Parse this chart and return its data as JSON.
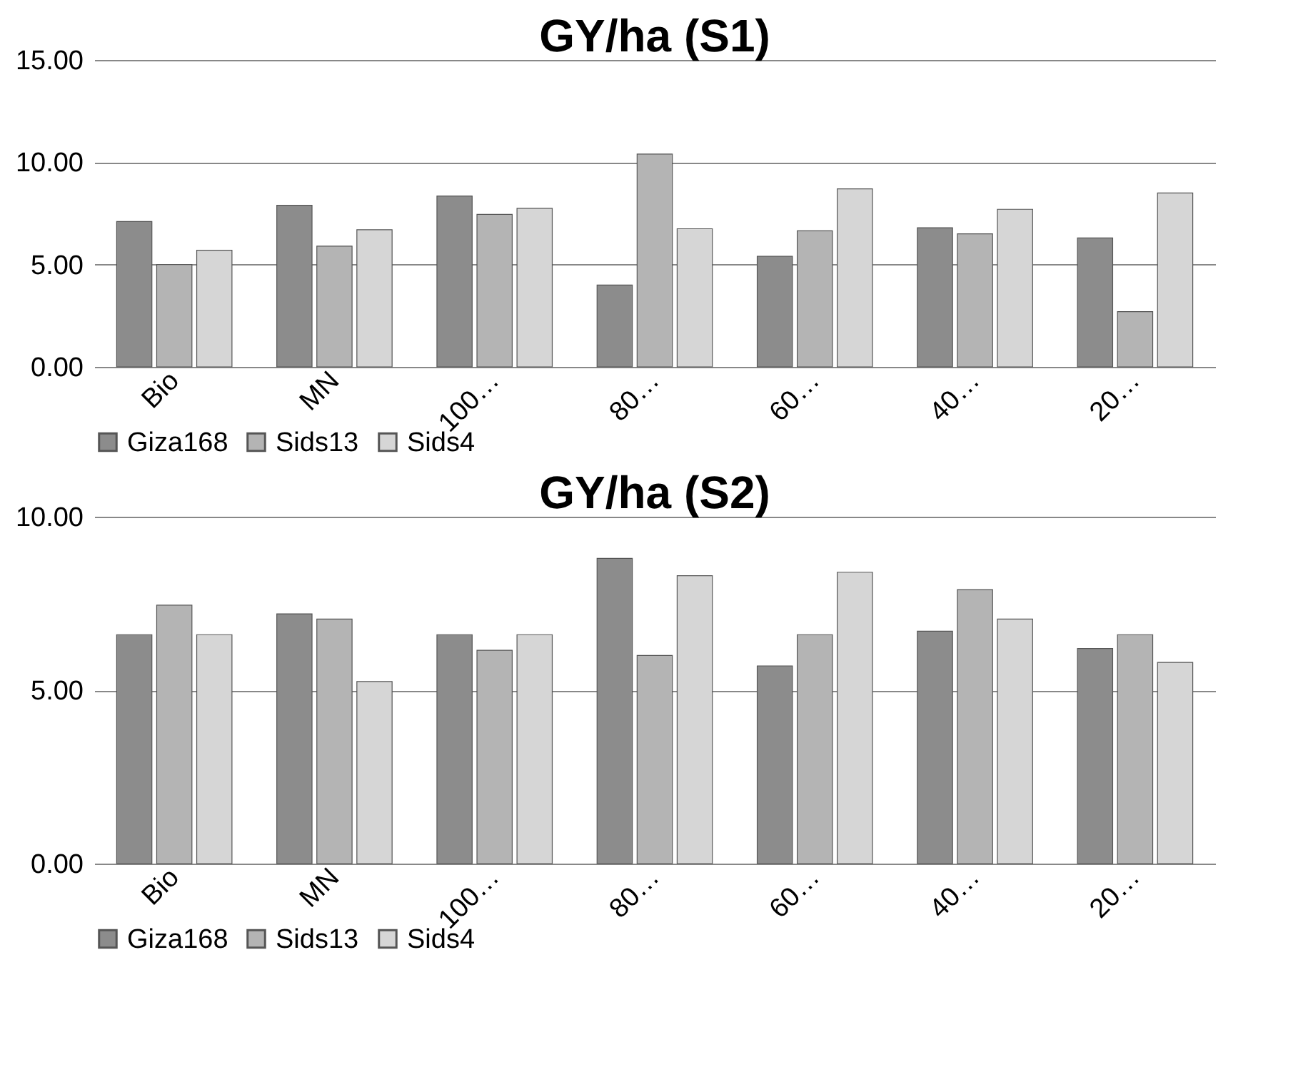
{
  "chart_data": [
    {
      "type": "bar",
      "title": "GY/ha (S1)",
      "categories": [
        "Bio",
        "MN",
        "100…",
        "80…",
        "60…",
        "40…",
        "20…"
      ],
      "series": [
        {
          "name": "Giza168",
          "color": "#8c8c8c",
          "values": [
            7.1,
            7.9,
            8.35,
            4.0,
            5.4,
            6.8,
            6.3
          ]
        },
        {
          "name": "Sids13",
          "color": "#b4b4b4",
          "values": [
            5.0,
            5.9,
            7.45,
            10.4,
            6.65,
            6.5,
            2.7
          ]
        },
        {
          "name": "Sids4",
          "color": "#d6d6d6",
          "values": [
            5.7,
            6.7,
            7.75,
            6.75,
            8.7,
            7.7,
            8.5
          ]
        }
      ],
      "ylim": [
        0,
        15
      ],
      "yticks": [
        {
          "value": 0,
          "label": "0.00"
        },
        {
          "value": 5,
          "label": "5.00"
        },
        {
          "value": 10,
          "label": "10.00"
        },
        {
          "value": 15,
          "label": "15.00"
        }
      ],
      "grid": "y",
      "legend": "bottom"
    },
    {
      "type": "bar",
      "title": "GY/ha (S2)",
      "categories": [
        "Bio",
        "MN",
        "100…",
        "80…",
        "60…",
        "40…",
        "20…"
      ],
      "series": [
        {
          "name": "Giza168",
          "color": "#8c8c8c",
          "values": [
            6.6,
            7.2,
            6.6,
            8.8,
            5.7,
            6.7,
            6.2
          ]
        },
        {
          "name": "Sids13",
          "color": "#b4b4b4",
          "values": [
            7.45,
            7.05,
            6.15,
            6.0,
            6.6,
            7.9,
            6.6
          ]
        },
        {
          "name": "Sids4",
          "color": "#d6d6d6",
          "values": [
            6.6,
            5.25,
            6.6,
            8.3,
            8.4,
            7.05,
            5.8
          ]
        }
      ],
      "ylim": [
        0,
        10
      ],
      "yticks": [
        {
          "value": 0,
          "label": "0.00"
        },
        {
          "value": 5,
          "label": "5.00"
        },
        {
          "value": 10,
          "label": "10.00"
        }
      ],
      "grid": "y",
      "legend": "bottom"
    }
  ]
}
